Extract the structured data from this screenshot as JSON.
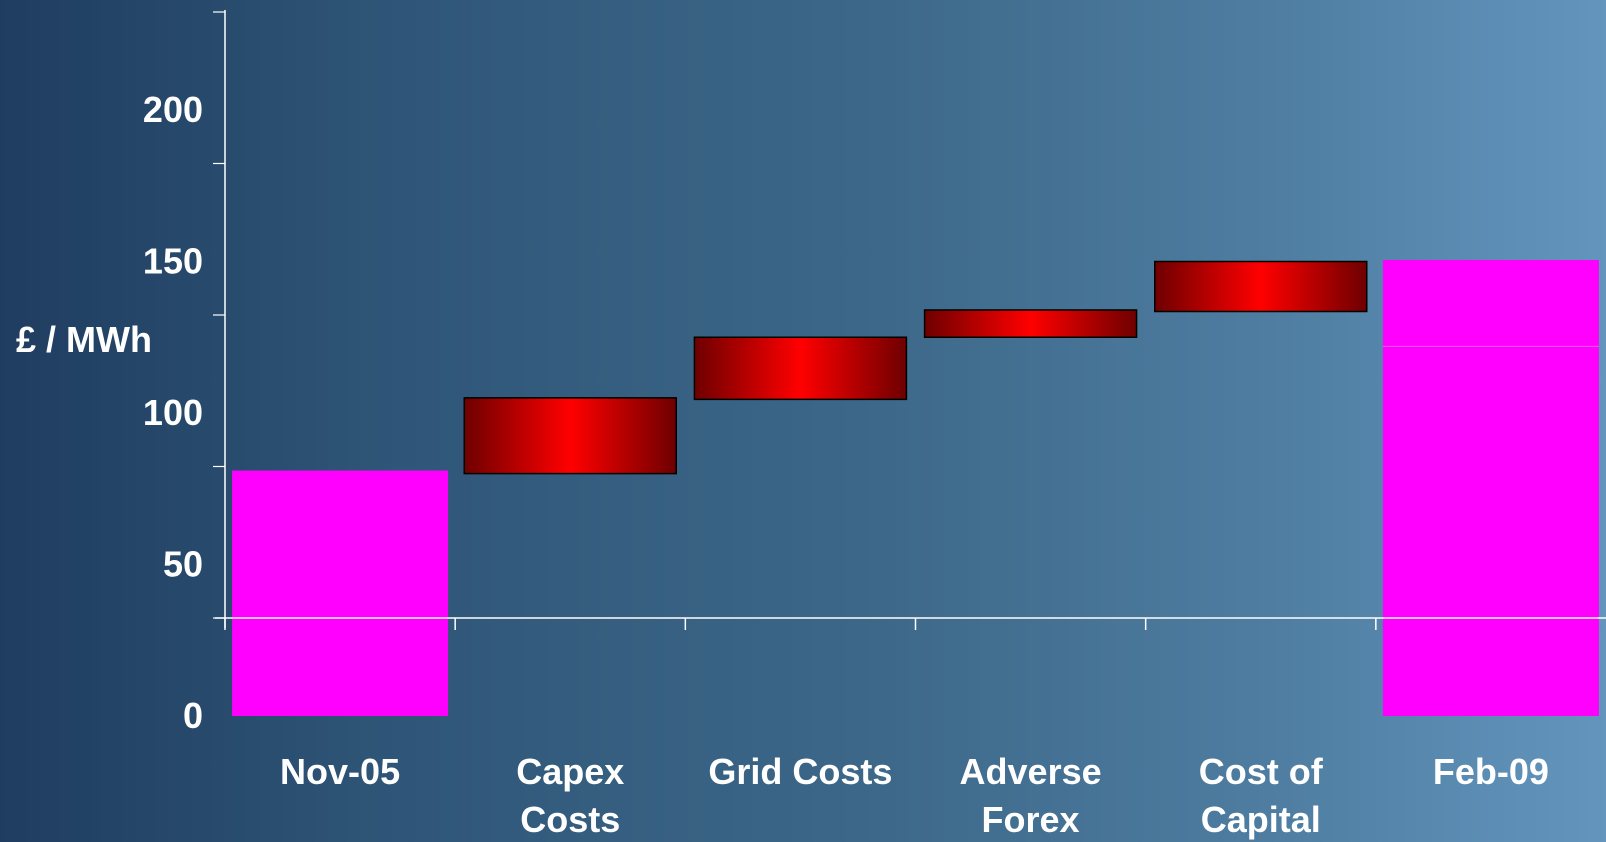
{
  "chart_data": {
    "type": "waterfall",
    "ylabel": "£ / MWh",
    "y_ticks": [
      "0",
      "50",
      "100",
      "150",
      "200"
    ],
    "ylim": [
      0,
      230
    ],
    "categories": [
      {
        "label_lines": [
          "Nov-05"
        ],
        "kind": "total",
        "start": 0,
        "end": 81
      },
      {
        "label_lines": [
          "Capex",
          "Costs"
        ],
        "kind": "increase",
        "start": 80,
        "end": 105
      },
      {
        "label_lines": [
          "Grid Costs"
        ],
        "kind": "increase",
        "start": 104.5,
        "end": 125
      },
      {
        "label_lines": [
          "Adverse",
          "Forex"
        ],
        "kind": "increase",
        "start": 125,
        "end": 134
      },
      {
        "label_lines": [
          "Cost of",
          "Capital"
        ],
        "kind": "increase",
        "start": 133.5,
        "end": 150
      },
      {
        "label_lines": [
          "Feb-09"
        ],
        "kind": "total",
        "start": 0,
        "end": 150.5,
        "internal_line": 122
      }
    ],
    "colors": {
      "total": "#ff00ff",
      "increase_center": "#ff0000",
      "increase_edge": "#6e0000",
      "axis": "#ffffff"
    },
    "grid": false
  }
}
